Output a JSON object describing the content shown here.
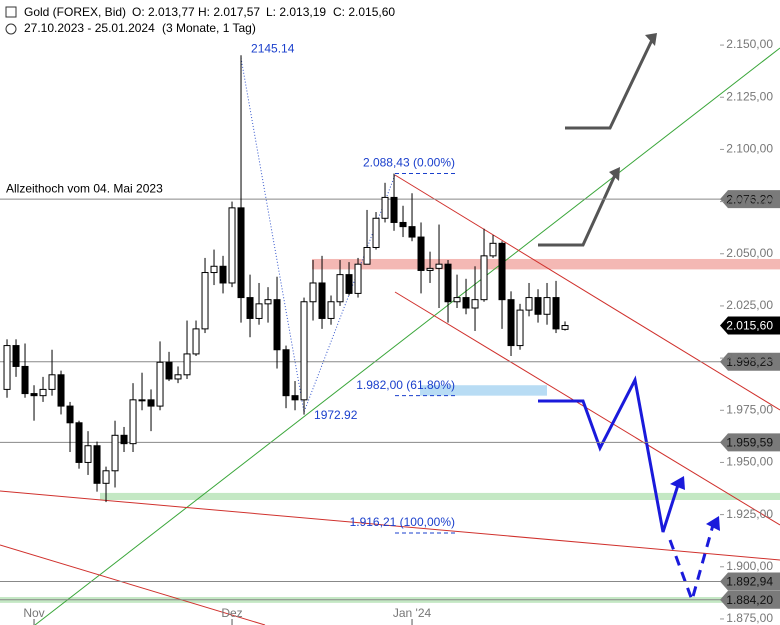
{
  "header": {
    "title": "Gold (FOREX, Bid)",
    "ohlc": [
      "O: 2.013,77",
      "H: 2.017,57",
      "L: 2.013,19",
      "C: 2.015,60"
    ],
    "range": "27.10.2023 - 25.01.2024",
    "period": "(3 Monate, 1 Tag)"
  },
  "chart_data": {
    "type": "candlestick",
    "open": [
      1985,
      2006,
      1996,
      1983,
      1982,
      1985,
      1992,
      1977,
      1969,
      1950,
      1958,
      1940,
      1946,
      1963,
      1959,
      1980,
      1980,
      1977,
      1998,
      1990,
      1992,
      2002,
      2014,
      2041,
      2044,
      2036,
      2072,
      2029,
      2019,
      2026,
      2028,
      2004,
      1982,
      1980,
      2027,
      2036,
      2019,
      2027,
      2040,
      2031,
      2045,
      2053,
      2067,
      2077,
      2065,
      2063,
      2058,
      2042,
      2043,
      2045,
      2027,
      2029,
      2024,
      2028,
      2049,
      2055,
      2028,
      2006,
      2023,
      2029,
      2021,
      2029,
      2013.77
    ],
    "high": [
      2009,
      2009,
      2007,
      1987,
      1991,
      2004,
      1994,
      1979,
      1970,
      1965,
      1960,
      1948,
      1970,
      1967,
      1988,
      1993,
      1985,
      2008,
      2003,
      1996,
      2018,
      2018,
      2048,
      2052,
      2049,
      2075,
      2145.14,
      2040,
      2036,
      2034,
      2039,
      2006,
      1989,
      2029,
      2047,
      2049,
      2030,
      2047,
      2046,
      2048,
      2071,
      2070,
      2084,
      2088.43,
      2073,
      2079,
      2065,
      2051,
      2064,
      2047,
      2040,
      2038,
      2044,
      2062,
      2059,
      2056,
      2032,
      2026,
      2036,
      2033,
      2036,
      2037,
      2017.57
    ],
    "low": [
      1981,
      1991,
      1981,
      1970,
      1979,
      1982,
      1973,
      1955,
      1947,
      1944,
      1936,
      1931,
      1938,
      1955,
      1955,
      1975,
      1965,
      1975,
      1989,
      1988,
      1990,
      2001,
      2012,
      2035,
      2031,
      2034,
      2017,
      2010,
      2016,
      2017,
      1995,
      1976,
      1975,
      1972.92,
      2018,
      2014,
      2016,
      2025,
      2030,
      2029,
      2045,
      2052,
      2065,
      2061,
      2058,
      2056,
      2031,
      2036,
      2024,
      2017,
      2024,
      2021,
      2013,
      2027,
      2048,
      2014,
      2001,
      2004,
      2020,
      2017,
      2016,
      2012,
      2013.19
    ],
    "close": [
      2006,
      1996,
      1983,
      1982,
      1985,
      1992,
      1977,
      1969,
      1950,
      1958,
      1940,
      1946,
      1963,
      1959,
      1980,
      1980,
      1977,
      1998,
      1990,
      1992,
      2002,
      2014,
      2041,
      2044,
      2036,
      2072,
      2029,
      2019,
      2026,
      2028,
      2004,
      1982,
      1980,
      2027,
      2036,
      2019,
      2027,
      2040,
      2031,
      2045,
      2053,
      2067,
      2077,
      2065,
      2063,
      2058,
      2042,
      2043,
      2045,
      2027,
      2029,
      2024,
      2028,
      2049,
      2055,
      2028,
      2006,
      2023,
      2029,
      2021,
      2029,
      2014,
      2015.6
    ],
    "xlim": [
      -0.78,
      79.22
    ],
    "xticks": [
      {
        "value": 3,
        "label": "Nov"
      },
      {
        "value": 25,
        "label": "Dez"
      },
      {
        "value": 45,
        "label": "Jan '24"
      }
    ],
    "ylim": [
      1872.1,
      2171.6
    ],
    "yticks": [
      {
        "value": 2150,
        "label": "2.150,00"
      },
      {
        "value": 2125,
        "label": "2.125,00"
      },
      {
        "value": 2100,
        "label": "2.100,00"
      },
      {
        "value": 2075,
        "label": "2.075,00"
      },
      {
        "value": 2050,
        "label": "2.050,00"
      },
      {
        "value": 2025,
        "label": "2.025,00"
      },
      {
        "value": 2000,
        "label": "2.000,00"
      },
      {
        "value": 1975,
        "label": "1.975,00"
      },
      {
        "value": 1950,
        "label": "1.950,00"
      },
      {
        "value": 1925,
        "label": "1.925,00"
      },
      {
        "value": 1900,
        "label": "1.900,00"
      },
      {
        "value": 1875,
        "label": "1.875,00"
      }
    ],
    "levels": [
      {
        "value": 2076.2,
        "label": "2.076,20"
      },
      {
        "value": 1998.23,
        "label": "1.998,23"
      },
      {
        "value": 1959.59,
        "label": "1.959,59"
      },
      {
        "value": 1892.94,
        "label": "1.892,94"
      },
      {
        "value": 1884.2,
        "label": "1.884,20"
      }
    ],
    "last": {
      "value": 2015.6,
      "label": "2.015,60"
    },
    "level_note": "Allzeithoch  vom 04. Mai 2023",
    "zones": [
      {
        "low": 2042.5,
        "high": 2047.5,
        "color": "#f4b8b4"
      },
      {
        "low": 1932,
        "high": 1935.4,
        "color": "#c4e8c4"
      },
      {
        "low": 1882.7,
        "high": 1885.5,
        "color": "#c4e8c4"
      },
      {
        "low": 1982,
        "high": 1987,
        "color": "#b8dcf4"
      }
    ],
    "fib": [
      {
        "value": 2088.43,
        "label": "2.088,43 (0.00%)"
      },
      {
        "value": 1982,
        "label": "1.982,00 (61.80%)"
      },
      {
        "value": 1916.21,
        "label": "1.916,21 (100,00%)"
      }
    ],
    "extremes": [
      2145.14,
      1972.92
    ]
  }
}
